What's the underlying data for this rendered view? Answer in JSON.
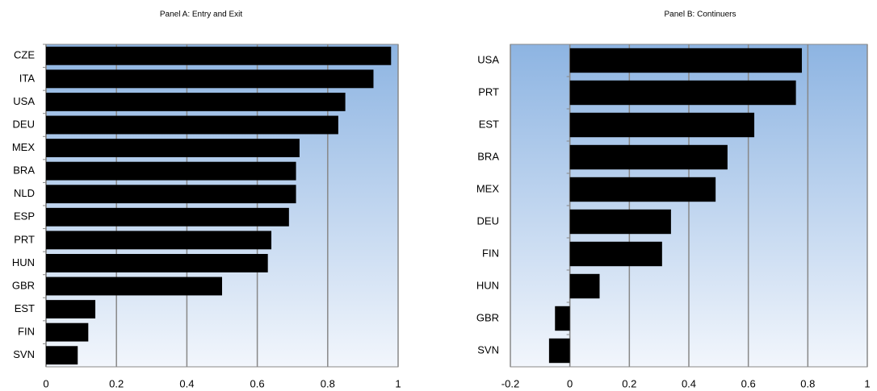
{
  "chart_data": [
    {
      "type": "barh",
      "title": "Panel A: Entry and Exit",
      "categories": [
        "CZE",
        "ITA",
        "USA",
        "DEU",
        "MEX",
        "BRA",
        "NLD",
        "ESP",
        "PRT",
        "HUN",
        "GBR",
        "EST",
        "FIN",
        "SVN"
      ],
      "values": [
        0.98,
        0.93,
        0.85,
        0.83,
        0.72,
        0.71,
        0.71,
        0.69,
        0.64,
        0.63,
        0.5,
        0.14,
        0.12,
        0.09
      ],
      "color": "#000000",
      "xlim": [
        0,
        1
      ],
      "xticks": [
        0,
        0.2,
        0.4,
        0.6,
        0.8,
        1
      ],
      "grid": true
    },
    {
      "type": "barh",
      "title": "Panel B: Continuers",
      "categories": [
        "USA",
        "PRT",
        "EST",
        "BRA",
        "MEX",
        "DEU",
        "FIN",
        "HUN",
        "GBR",
        "SVN"
      ],
      "values": [
        0.78,
        0.76,
        0.62,
        0.53,
        0.49,
        0.34,
        0.31,
        0.1,
        -0.05,
        -0.07
      ],
      "color": "#000000",
      "xlim": [
        -0.2,
        1
      ],
      "xticks": [
        -0.2,
        0,
        0.2,
        0.4,
        0.6,
        0.8,
        1
      ],
      "grid": true
    }
  ]
}
